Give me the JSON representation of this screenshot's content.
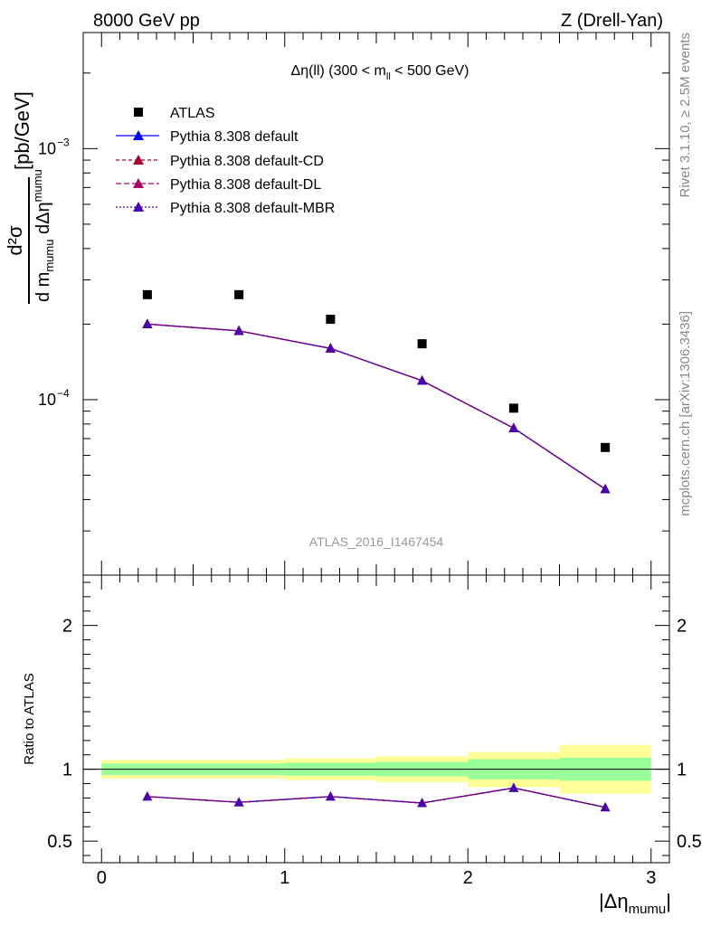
{
  "header": {
    "left": "8000 GeV pp",
    "right": "Z (Drell-Yan)"
  },
  "side_labels": {
    "rivet": "Rivet 3.1.10, ≥ 2.5M events",
    "mcplots": "mcplots.cern.ch [arXiv:1306.3436]"
  },
  "colors": {
    "atlas": "#000000",
    "default": "#0000ff",
    "cd": "#aa0033",
    "dl": "#aa0066",
    "mbr": "#4a00aa",
    "band_inner": "#99ff99",
    "band_outer": "#ffff99"
  },
  "chart_data": [
    {
      "type": "scatter",
      "title_main": "Δη(ll) (300 < m",
      "title_sub": "ll",
      "title_end": " < 500 GeV)",
      "ylabel": "[pb/GeV]",
      "ylabel_frac_num": "d²σ",
      "ylabel_frac_den": "d m",
      "ylabel_frac_den_sub": "mumu",
      "ylabel_frac_den_mid": " dΔη",
      "ylabel_frac_den_sub2": "mumu",
      "watermark": "ATLAS_2016_I1467454",
      "yscale": "log",
      "ylim": [
        2e-05,
        0.0029
      ],
      "xlim": [
        -0.1,
        3.1
      ],
      "yticks": [
        {
          "value": 0.0001,
          "mantissa": "10",
          "exponent": "−4"
        },
        {
          "value": 0.001,
          "mantissa": "10",
          "exponent": "−3"
        }
      ],
      "x": [
        0.25,
        0.75,
        1.25,
        1.75,
        2.25,
        2.75
      ],
      "x_err": 0.25,
      "series": [
        {
          "name": "ATLAS",
          "values": [
            0.000262,
            0.000262,
            0.000209,
            0.000167,
            9.25e-05,
            6.45e-05
          ]
        },
        {
          "name": "Pythia 8.308 default",
          "values": [
            0.0002,
            0.000188,
            0.00016,
            0.000119,
            7.7e-05,
            4.4e-05
          ]
        },
        {
          "name": "Pythia 8.308 default-CD",
          "values": [
            0.0002,
            0.000188,
            0.00016,
            0.000119,
            7.7e-05,
            4.4e-05
          ]
        },
        {
          "name": "Pythia 8.308 default-DL",
          "values": [
            0.0002,
            0.000188,
            0.00016,
            0.000119,
            7.7e-05,
            4.4e-05
          ]
        },
        {
          "name": "Pythia 8.308 default-MBR",
          "values": [
            0.0002,
            0.000188,
            0.00016,
            0.000119,
            7.7e-05,
            4.4e-05
          ]
        }
      ]
    },
    {
      "type": "line",
      "ylabel": "Ratio to ATLAS",
      "xlabel": "|Δη",
      "xlabel_sub": "mumu",
      "xlabel_end": "|",
      "ylim": [
        0.35,
        2.35
      ],
      "xlim": [
        -0.1,
        3.1
      ],
      "xticks": [
        {
          "value": 0,
          "label": "0"
        },
        {
          "value": 1,
          "label": "1"
        },
        {
          "value": 2,
          "label": "2"
        },
        {
          "value": 3,
          "label": "3"
        }
      ],
      "yticks": [
        {
          "value": 0.5,
          "label": "0.5"
        },
        {
          "value": 1,
          "label": "1"
        },
        {
          "value": 2,
          "label": "2"
        }
      ],
      "bins": [
        [
          0,
          0.5
        ],
        [
          0.5,
          1.0
        ],
        [
          1.0,
          1.5
        ],
        [
          1.5,
          2.0
        ],
        [
          2.0,
          2.5
        ],
        [
          2.5,
          3.0
        ]
      ],
      "band_inner": [
        [
          0.96,
          1.04
        ],
        [
          0.96,
          1.04
        ],
        [
          0.955,
          1.045
        ],
        [
          0.95,
          1.05
        ],
        [
          0.93,
          1.07
        ],
        [
          0.92,
          1.08
        ]
      ],
      "band_outer": [
        [
          0.935,
          1.065
        ],
        [
          0.935,
          1.065
        ],
        [
          0.925,
          1.075
        ],
        [
          0.91,
          1.09
        ],
        [
          0.875,
          1.12
        ],
        [
          0.83,
          1.17
        ]
      ],
      "x": [
        0.25,
        0.75,
        1.25,
        1.75,
        2.25,
        2.75
      ],
      "series": [
        {
          "name": "Pythia 8.308 default",
          "values": [
            0.81,
            0.77,
            0.81,
            0.765,
            0.87,
            0.735
          ]
        }
      ]
    }
  ]
}
